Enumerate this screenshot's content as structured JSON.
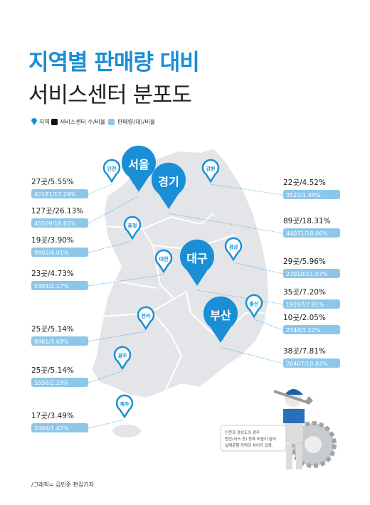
{
  "title": {
    "line1": "지역별 판매량 대비",
    "line2": "서비스센터 분포도"
  },
  "legend": [
    "지역",
    "서비스센터 수/비율",
    "판매량(대)/비율"
  ],
  "regions": [
    {
      "name": "인천",
      "service": "27곳/5.55%",
      "sales": "42181/17.29%"
    },
    {
      "name": "서울",
      "service": "127곳/26.13%",
      "sales": "45509/18.65%"
    },
    {
      "name": "충청",
      "service": "19곳/3.90%",
      "sales": "9802/4.01%"
    },
    {
      "name": "대전",
      "service": "23곳/4.73%",
      "sales": "5304/2.17%"
    },
    {
      "name": "전라",
      "service": "25곳/5.14%",
      "sales": "8981/3.68%"
    },
    {
      "name": "광주",
      "service": "25곳/5.14%",
      "sales": "5598/2.29%"
    },
    {
      "name": "제주",
      "service": "17곳/3.49%",
      "sales": "3469/1.42%"
    },
    {
      "name": "강원",
      "service": "22곳/4.52%",
      "sales": "3527/1.44%"
    },
    {
      "name": "경기",
      "service": "89곳/18.31%",
      "sales": "44071/18.06%"
    },
    {
      "name": "경상",
      "service": "29곳/5.96%",
      "sales": "27010/11.07%"
    },
    {
      "name": "대구",
      "service": "35곳/7.20%",
      "sales": "19297/7.91%"
    },
    {
      "name": "울산",
      "service": "10곳/2.05%",
      "sales": "2744/1.12%"
    },
    {
      "name": "부산",
      "service": "38곳/7.81%",
      "sales": "26407/10.82%"
    }
  ],
  "note": [
    "인천과 경상도의 경우",
    "법인(리스 등) 등록 비중이 높아",
    "실제운행 지역과 차이가 있음."
  ],
  "credit": "/그래픽= 김민준 편집기자"
}
